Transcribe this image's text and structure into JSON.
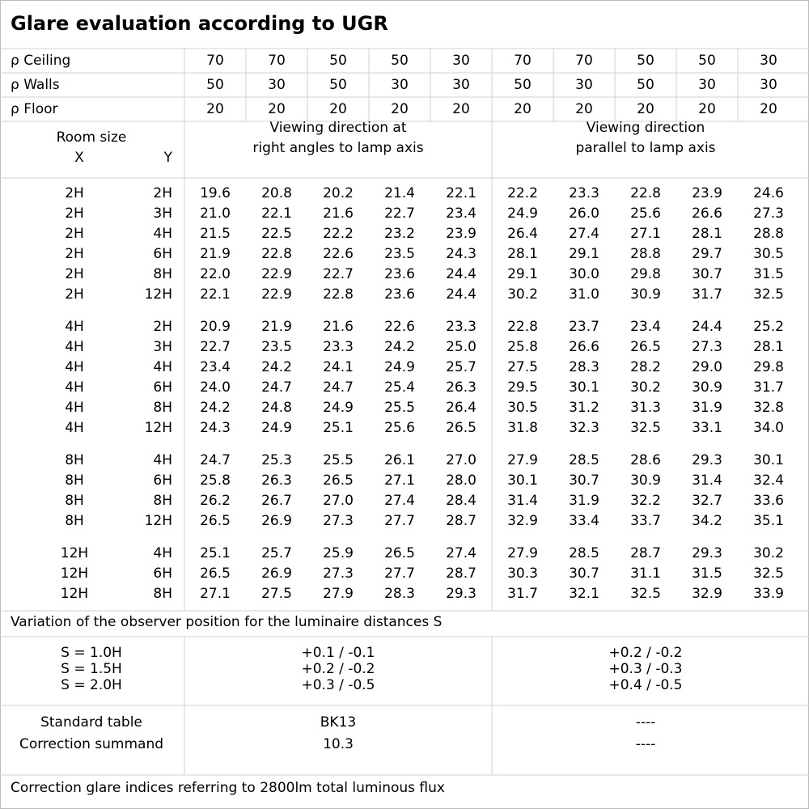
{
  "header": {
    "title": "Glare evaluation according to UGR"
  },
  "reflectances": [
    {
      "label": "ρ Ceiling",
      "values": [
        "70",
        "70",
        "50",
        "50",
        "30",
        "70",
        "70",
        "50",
        "50",
        "30"
      ]
    },
    {
      "label": "ρ Walls",
      "values": [
        "50",
        "30",
        "50",
        "30",
        "30",
        "50",
        "30",
        "50",
        "30",
        "30"
      ]
    },
    {
      "label": "ρ Floor",
      "values": [
        "20",
        "20",
        "20",
        "20",
        "20",
        "20",
        "20",
        "20",
        "20",
        "20"
      ]
    }
  ],
  "column_header": {
    "room_size": "Room size",
    "x": "X",
    "y": "Y",
    "perpendicular": [
      "Viewing direction at",
      "right angles to lamp axis"
    ],
    "parallel": [
      "Viewing direction",
      "parallel to lamp axis"
    ]
  },
  "groups": [
    [
      {
        "x": "2H",
        "y": "2H",
        "values": [
          "19.6",
          "20.8",
          "20.2",
          "21.4",
          "22.1",
          "22.2",
          "23.3",
          "22.8",
          "23.9",
          "24.6"
        ]
      },
      {
        "x": "2H",
        "y": "3H",
        "values": [
          "21.0",
          "22.1",
          "21.6",
          "22.7",
          "23.4",
          "24.9",
          "26.0",
          "25.6",
          "26.6",
          "27.3"
        ]
      },
      {
        "x": "2H",
        "y": "4H",
        "values": [
          "21.5",
          "22.5",
          "22.2",
          "23.2",
          "23.9",
          "26.4",
          "27.4",
          "27.1",
          "28.1",
          "28.8"
        ]
      },
      {
        "x": "2H",
        "y": "6H",
        "values": [
          "21.9",
          "22.8",
          "22.6",
          "23.5",
          "24.3",
          "28.1",
          "29.1",
          "28.8",
          "29.7",
          "30.5"
        ]
      },
      {
        "x": "2H",
        "y": "8H",
        "values": [
          "22.0",
          "22.9",
          "22.7",
          "23.6",
          "24.4",
          "29.1",
          "30.0",
          "29.8",
          "30.7",
          "31.5"
        ]
      },
      {
        "x": "2H",
        "y": "12H",
        "values": [
          "22.1",
          "22.9",
          "22.8",
          "23.6",
          "24.4",
          "30.2",
          "31.0",
          "30.9",
          "31.7",
          "32.5"
        ]
      }
    ],
    [
      {
        "x": "4H",
        "y": "2H",
        "values": [
          "20.9",
          "21.9",
          "21.6",
          "22.6",
          "23.3",
          "22.8",
          "23.7",
          "23.4",
          "24.4",
          "25.2"
        ]
      },
      {
        "x": "4H",
        "y": "3H",
        "values": [
          "22.7",
          "23.5",
          "23.3",
          "24.2",
          "25.0",
          "25.8",
          "26.6",
          "26.5",
          "27.3",
          "28.1"
        ]
      },
      {
        "x": "4H",
        "y": "4H",
        "values": [
          "23.4",
          "24.2",
          "24.1",
          "24.9",
          "25.7",
          "27.5",
          "28.3",
          "28.2",
          "29.0",
          "29.8"
        ]
      },
      {
        "x": "4H",
        "y": "6H",
        "values": [
          "24.0",
          "24.7",
          "24.7",
          "25.4",
          "26.3",
          "29.5",
          "30.1",
          "30.2",
          "30.9",
          "31.7"
        ]
      },
      {
        "x": "4H",
        "y": "8H",
        "values": [
          "24.2",
          "24.8",
          "24.9",
          "25.5",
          "26.4",
          "30.5",
          "31.2",
          "31.3",
          "31.9",
          "32.8"
        ]
      },
      {
        "x": "4H",
        "y": "12H",
        "values": [
          "24.3",
          "24.9",
          "25.1",
          "25.6",
          "26.5",
          "31.8",
          "32.3",
          "32.5",
          "33.1",
          "34.0"
        ]
      }
    ],
    [
      {
        "x": "8H",
        "y": "4H",
        "values": [
          "24.7",
          "25.3",
          "25.5",
          "26.1",
          "27.0",
          "27.9",
          "28.5",
          "28.6",
          "29.3",
          "30.1"
        ]
      },
      {
        "x": "8H",
        "y": "6H",
        "values": [
          "25.8",
          "26.3",
          "26.5",
          "27.1",
          "28.0",
          "30.1",
          "30.7",
          "30.9",
          "31.4",
          "32.4"
        ]
      },
      {
        "x": "8H",
        "y": "8H",
        "values": [
          "26.2",
          "26.7",
          "27.0",
          "27.4",
          "28.4",
          "31.4",
          "31.9",
          "32.2",
          "32.7",
          "33.6"
        ]
      },
      {
        "x": "8H",
        "y": "12H",
        "values": [
          "26.5",
          "26.9",
          "27.3",
          "27.7",
          "28.7",
          "32.9",
          "33.4",
          "33.7",
          "34.2",
          "35.1"
        ]
      }
    ],
    [
      {
        "x": "12H",
        "y": "4H",
        "values": [
          "25.1",
          "25.7",
          "25.9",
          "26.5",
          "27.4",
          "27.9",
          "28.5",
          "28.7",
          "29.3",
          "30.2"
        ]
      },
      {
        "x": "12H",
        "y": "6H",
        "values": [
          "26.5",
          "26.9",
          "27.3",
          "27.7",
          "28.7",
          "30.3",
          "30.7",
          "31.1",
          "31.5",
          "32.5"
        ]
      },
      {
        "x": "12H",
        "y": "8H",
        "values": [
          "27.1",
          "27.5",
          "27.9",
          "28.3",
          "29.3",
          "31.7",
          "32.1",
          "32.5",
          "32.9",
          "33.9"
        ]
      }
    ]
  ],
  "variation": {
    "title": "Variation of the observer position for the luminaire distances S",
    "rows": [
      {
        "label": "S = 1.0H",
        "perpendicular": "+0.1 / -0.1",
        "parallel": "+0.2 / -0.2"
      },
      {
        "label": "S = 1.5H",
        "perpendicular": "+0.2 / -0.2",
        "parallel": "+0.3 / -0.3"
      },
      {
        "label": "S = 2.0H",
        "perpendicular": "+0.3 / -0.5",
        "parallel": "+0.4 / -0.5"
      }
    ]
  },
  "standard": {
    "rows": [
      {
        "label": "Standard table",
        "perpendicular": "BK13",
        "parallel": "----"
      },
      {
        "label": "Correction summand",
        "perpendicular": "10.3",
        "parallel": "----"
      }
    ]
  },
  "footer": "Correction glare indices referring to 2800lm total luminous flux"
}
